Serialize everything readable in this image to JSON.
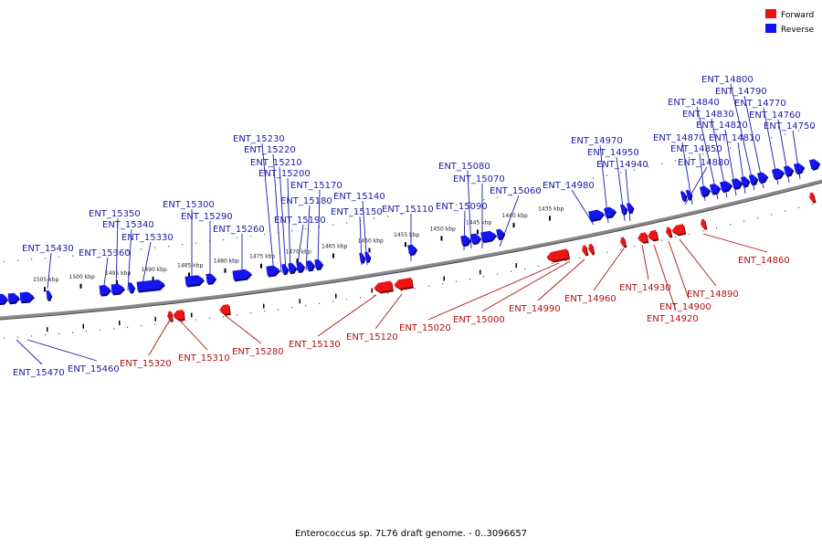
{
  "caption": "Enterococcus sp. 7L76 draft genome. - 0..3096657",
  "legend": [
    {
      "label": "Forward",
      "color": "#ee1111"
    },
    {
      "label": "Reverse",
      "color": "#1111ee"
    }
  ],
  "colors": {
    "forward": "#ee1111",
    "reverse": "#1111ee",
    "backbone": "#8a8a8a"
  },
  "kbp_ticks": [
    {
      "label": "1505 kbp",
      "kbp": 1505
    },
    {
      "label": "1500 kbp",
      "kbp": 1500
    },
    {
      "label": "1495 kbp",
      "kbp": 1495
    },
    {
      "label": "1490 kbp",
      "kbp": 1490
    },
    {
      "label": "1485 kbp",
      "kbp": 1485
    },
    {
      "label": "1480 kbp",
      "kbp": 1480
    },
    {
      "label": "1475 kbp",
      "kbp": 1475
    },
    {
      "label": "1470 kbp",
      "kbp": 1470
    },
    {
      "label": "1465 kbp",
      "kbp": 1465
    },
    {
      "label": "1460 kbp",
      "kbp": 1460
    },
    {
      "label": "1455 kbp",
      "kbp": 1455
    },
    {
      "label": "1450 kbp",
      "kbp": 1450
    },
    {
      "label": "1445 kbp",
      "kbp": 1445
    },
    {
      "label": "1440 kbp",
      "kbp": 1440
    },
    {
      "label": "1435 kbp",
      "kbp": 1435
    }
  ],
  "reverse_genes": [
    "ENT_15470",
    "ENT_15460",
    "ENT_15430",
    "ENT_15360",
    "ENT_15350",
    "ENT_15340",
    "ENT_15330",
    "ENT_15300",
    "ENT_15290",
    "ENT_15260",
    "ENT_15230",
    "ENT_15220",
    "ENT_15210",
    "ENT_15200",
    "ENT_15190",
    "ENT_15180",
    "ENT_15170",
    "ENT_15150",
    "ENT_15140",
    "ENT_15110",
    "ENT_15090",
    "ENT_15080",
    "ENT_15070",
    "ENT_15060",
    "ENT_14980",
    "ENT_14970",
    "ENT_14950",
    "ENT_14940",
    "ENT_14880",
    "ENT_14870",
    "ENT_14850",
    "ENT_14840",
    "ENT_14830",
    "ENT_14820",
    "ENT_14810",
    "ENT_14800",
    "ENT_14790",
    "ENT_14770",
    "ENT_14760",
    "ENT_14750"
  ],
  "forward_genes": [
    "ENT_15320",
    "ENT_15310",
    "ENT_15280",
    "ENT_15130",
    "ENT_15120",
    "ENT_15020",
    "ENT_15000",
    "ENT_14990",
    "ENT_14960",
    "ENT_14930",
    "ENT_14920",
    "ENT_14900",
    "ENT_14890",
    "ENT_14860"
  ]
}
